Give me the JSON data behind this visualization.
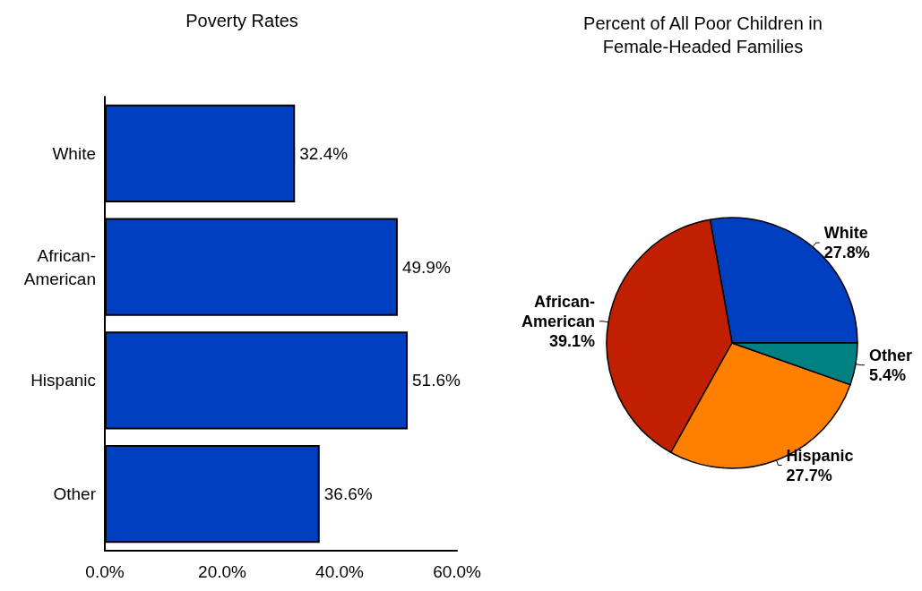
{
  "chart_data": [
    {
      "type": "bar",
      "title": "Poverty Rates",
      "orientation": "horizontal",
      "categories": [
        "White",
        "African-American",
        "Hispanic",
        "Other"
      ],
      "values": [
        32.4,
        49.9,
        51.6,
        36.6
      ],
      "value_labels": [
        "32.4%",
        "49.9%",
        "51.6%",
        "36.6%"
      ],
      "color": "#0040c0",
      "xlim": [
        0,
        60
      ],
      "xticks": [
        {
          "value": 0,
          "label": "0.0%"
        },
        {
          "value": 20,
          "label": "20.0%"
        },
        {
          "value": 40,
          "label": "40.0%"
        },
        {
          "value": 60,
          "label": "60.0%"
        }
      ],
      "grid": false,
      "legend": false
    },
    {
      "type": "pie",
      "title": "Percent of All Poor Children in\nFemale-Headed Families",
      "categories": [
        "White",
        "African-American",
        "Hispanic",
        "Other"
      ],
      "values": [
        27.8,
        39.1,
        27.7,
        5.4
      ],
      "value_labels": [
        "27.8%",
        "39.1%",
        "27.7%",
        "5.4%"
      ],
      "colors": [
        "#0040c0",
        "#c02000",
        "#ff8000",
        "#008080"
      ],
      "legend": false
    }
  ]
}
